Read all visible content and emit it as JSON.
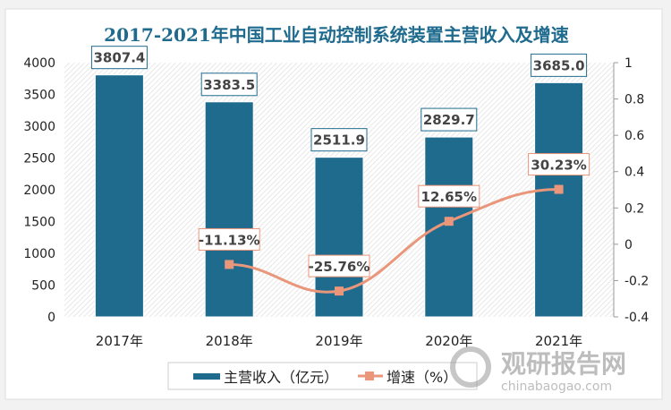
{
  "chart_data": {
    "type": "bar",
    "title": "2017-2021年中国工业自动控制系统装置主营收入及增速",
    "categories": [
      "2017年",
      "2018年",
      "2019年",
      "2020年",
      "2021年"
    ],
    "series": [
      {
        "name": "主营收入（亿元）",
        "type": "bar",
        "axis": "left",
        "values": [
          3807.4,
          3383.5,
          2511.9,
          2829.7,
          3685.0
        ],
        "labels": [
          "3807.4",
          "3383.5",
          "2511.9",
          "2829.7",
          "3685.0"
        ],
        "color": "#1f6b8e"
      },
      {
        "name": "增速（%）",
        "type": "line",
        "axis": "right",
        "values": [
          null,
          -0.1113,
          -0.2576,
          0.1265,
          0.3023
        ],
        "labels": [
          "",
          "-11.13%",
          "-25.76%",
          "12.65%",
          "30.23%"
        ],
        "color": "#e9967a"
      }
    ],
    "yleft": {
      "ylim": [
        0,
        4000
      ],
      "ticks": [
        "0",
        "500",
        "1000",
        "1500",
        "2000",
        "2500",
        "3000",
        "3500",
        "4000"
      ]
    },
    "yright": {
      "ylim": [
        -0.4,
        1
      ],
      "ticks": [
        "-0.4",
        "-0.2",
        "0",
        "0.2",
        "0.4",
        "0.6",
        "0.8",
        "1"
      ]
    },
    "legend": "bottom",
    "grid": false
  },
  "watermark": {
    "brand": "观研报告网",
    "url": "chinabaogao.com"
  }
}
